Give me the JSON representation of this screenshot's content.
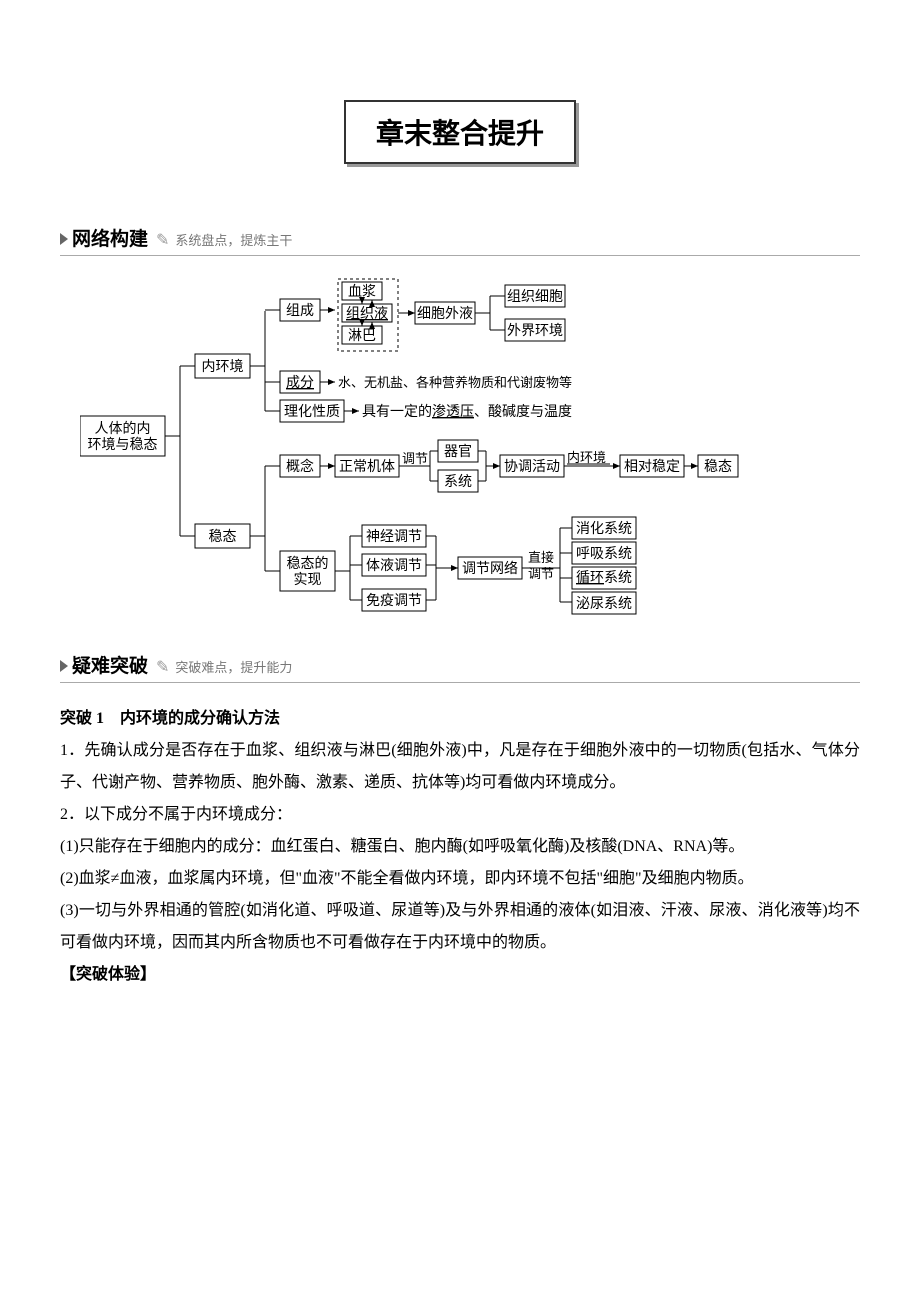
{
  "title": "章末整合提升",
  "section1": {
    "title": "网络构建",
    "subtitle": "系统盘点，提炼主干"
  },
  "diagram": {
    "root": "人体的内\n环境与稳态",
    "b_neihuanjing": "内环境",
    "b_wentai": "稳态",
    "b_zucheng": "组成",
    "b_chengfen": "成分",
    "b_lihua": "理化性质",
    "b_xuejang": "血浆",
    "b_zuzhi": "组织液",
    "b_linba": "淋巴",
    "b_waiye": "细胞外液",
    "b_zuzhixibao": "组织细胞",
    "b_waijie": "外界环境",
    "t_chengfen_desc": "水、无机盐、各种营养物质和代谢废物等",
    "t_lihua_desc1": "具有一定的",
    "t_lihua_desc2": "渗透压",
    "t_lihua_desc3": "、酸碱度与温度",
    "b_gainian": "概念",
    "b_zhengchang": "正常机体",
    "t_tiaojie": "调节",
    "b_qiguan": "器官",
    "b_xitong": "系统",
    "b_xietiao": "协调活动",
    "b_neihuanjing2": "内环境",
    "b_xiangdui": "相对稳定",
    "b_wentai2": "稳态",
    "b_shixian": "稳态的\n实现",
    "b_shenjing": "神经调节",
    "b_tiye": "体液调节",
    "b_mianyi": "免疫调节",
    "b_tiaojiewangluo": "调节网络",
    "t_zhijie": "直接",
    "t_tiaojie2": "调节",
    "b_xiaohua": "消化系统",
    "b_huxi": "呼吸系统",
    "b_xunhuan": "循环",
    "t_xunhuan_suffix": "系统",
    "b_miniao": "泌尿系统"
  },
  "section2": {
    "title": "疑难突破",
    "subtitle": "突破难点，提升能力"
  },
  "breakthrough": {
    "bt1_title": "突破 1　内环境的成分确认方法",
    "p1": "1．先确认成分是否存在于血浆、组织液与淋巴(细胞外液)中，凡是存在于细胞外液中的一切物质(包括水、气体分子、代谢产物、营养物质、胞外酶、激素、递质、抗体等)均可看做内环境成分。",
    "p2": "2．以下成分不属于内环境成分：",
    "p3": "(1)只能存在于细胞内的成分：血红蛋白、糖蛋白、胞内酶(如呼吸氧化酶)及核酸(DNA、RNA)等。",
    "p4": "(2)血浆≠血液，血浆属内环境，但\"血液\"不能全看做内环境，即内环境不包括\"细胞\"及细胞内物质。",
    "p5": "(3)一切与外界相通的管腔(如消化道、呼吸道、尿道等)及与外界相通的液体(如泪液、汗液、尿液、消化液等)均不可看做内环境，因而其内所含物质也不可看做存在于内环境中的物质。",
    "experience": "【突破体验】"
  }
}
